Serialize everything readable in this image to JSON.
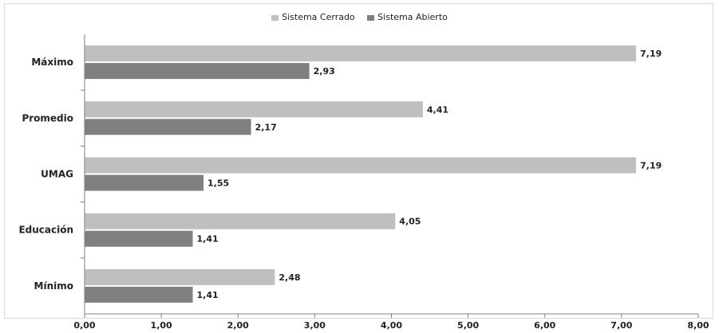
{
  "chart_data": {
    "type": "bar",
    "orientation": "horizontal",
    "categories": [
      "Máximo",
      "Promedio",
      "UMAG",
      "Educación",
      "Mínimo"
    ],
    "series": [
      {
        "name": "Sistema Cerrado",
        "values": [
          "7,19",
          "4,41",
          "7,19",
          "4,05",
          "2,48"
        ],
        "numeric": [
          7.19,
          4.41,
          7.19,
          4.05,
          2.48
        ],
        "color": "#bfbfbf"
      },
      {
        "name": "Sistema Abierto",
        "values": [
          "2,93",
          "2,17",
          "1,55",
          "1,41",
          "1,41"
        ],
        "numeric": [
          2.93,
          2.17,
          1.55,
          1.41,
          1.41
        ],
        "color": "#808080"
      }
    ],
    "xlim": [
      0,
      8
    ],
    "ticks": [
      "0,00",
      "1,00",
      "2,00",
      "3,00",
      "4,00",
      "5,00",
      "6,00",
      "7,00",
      "8,00"
    ],
    "legend_position": "top-center",
    "grid": false
  },
  "colors": {
    "axis": "#808080",
    "frame": "#d9d9d9"
  }
}
